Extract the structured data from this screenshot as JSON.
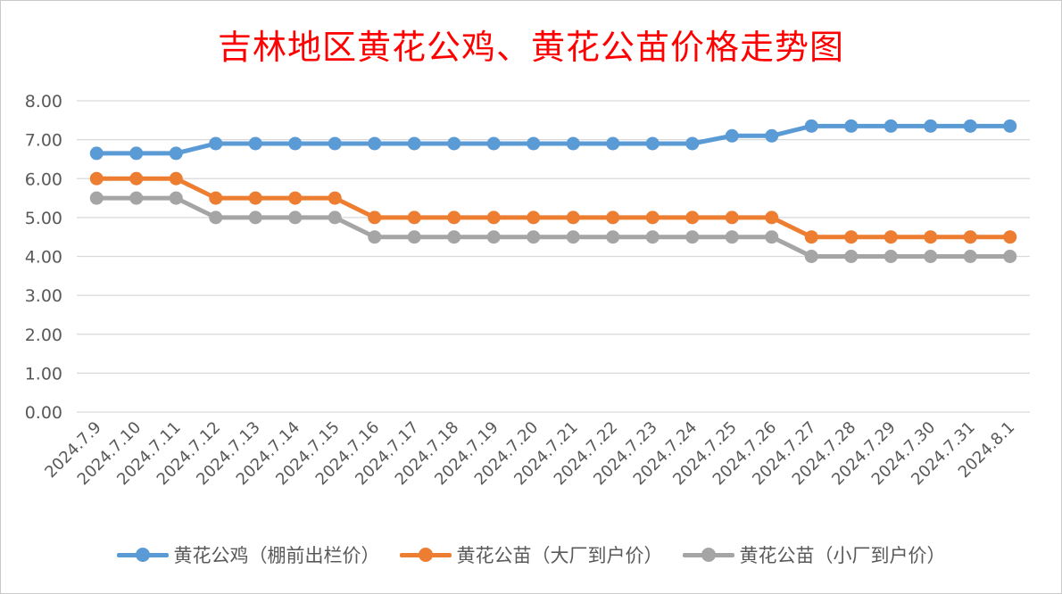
{
  "chart_data": {
    "type": "line",
    "title": "吉林地区黄花公鸡、黄花公苗价格走势图",
    "categories": [
      "2024.7.9",
      "2024.7.10",
      "2024.7.11",
      "2024.7.12",
      "2024.7.13",
      "2024.7.14",
      "2024.7.15",
      "2024.7.16",
      "2024.7.17",
      "2024.7.18",
      "2024.7.19",
      "2024.7.20",
      "2024.7.21",
      "2024.7.22",
      "2024.7.23",
      "2024.7.24",
      "2024.7.25",
      "2024.7.26",
      "2024.7.27",
      "2024.7.28",
      "2024.7.29",
      "2024.7.30",
      "2024.7.31",
      "2024.8.1"
    ],
    "y_ticks": [
      "0.00",
      "1.00",
      "2.00",
      "3.00",
      "4.00",
      "5.00",
      "6.00",
      "7.00",
      "8.00"
    ],
    "ylim": [
      0,
      8
    ],
    "grid": true,
    "legend_position": "bottom",
    "series": [
      {
        "name": "黄花公鸡（棚前出栏价）",
        "color": "#5b9bd5",
        "values": [
          6.65,
          6.65,
          6.65,
          6.9,
          6.9,
          6.9,
          6.9,
          6.9,
          6.9,
          6.9,
          6.9,
          6.9,
          6.9,
          6.9,
          6.9,
          6.9,
          7.1,
          7.1,
          7.35,
          7.35,
          7.35,
          7.35,
          7.35,
          7.35
        ]
      },
      {
        "name": "黄花公苗（大厂到户价）",
        "color": "#ed7d31",
        "values": [
          6.0,
          6.0,
          6.0,
          5.5,
          5.5,
          5.5,
          5.5,
          5.0,
          5.0,
          5.0,
          5.0,
          5.0,
          5.0,
          5.0,
          5.0,
          5.0,
          5.0,
          5.0,
          4.5,
          4.5,
          4.5,
          4.5,
          4.5,
          4.5
        ]
      },
      {
        "name": "黄花公苗（小厂到户价）",
        "color": "#a5a5a5",
        "values": [
          5.5,
          5.5,
          5.5,
          5.0,
          5.0,
          5.0,
          5.0,
          4.5,
          4.5,
          4.5,
          4.5,
          4.5,
          4.5,
          4.5,
          4.5,
          4.5,
          4.5,
          4.5,
          4.0,
          4.0,
          4.0,
          4.0,
          4.0,
          4.0
        ]
      }
    ]
  }
}
